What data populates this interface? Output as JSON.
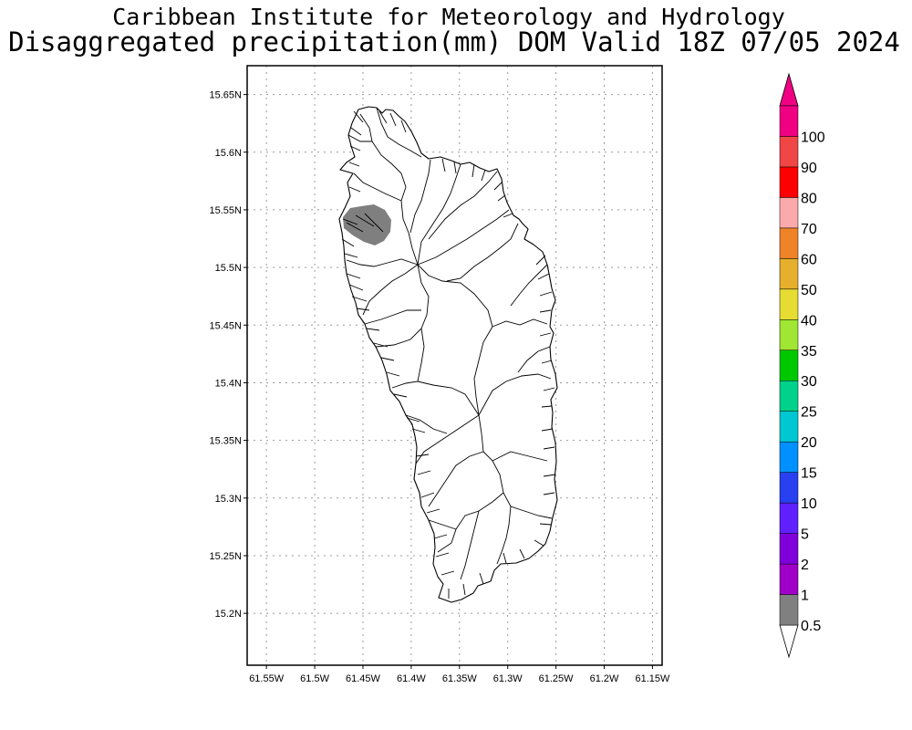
{
  "header": {
    "title": "Caribbean Institute for Meteorology and Hydrology",
    "subtitle": "Disaggregated precipitation(mm) DOM Valid 18Z 07/05 2024"
  },
  "map": {
    "lon_range": [
      -61.57,
      -61.14
    ],
    "lat_range": [
      15.155,
      15.675
    ],
    "lon_ticks": [
      {
        "value": -61.55,
        "label": "61.55W"
      },
      {
        "value": -61.5,
        "label": "61.5W"
      },
      {
        "value": -61.45,
        "label": "61.45W"
      },
      {
        "value": -61.4,
        "label": "61.4W"
      },
      {
        "value": -61.35,
        "label": "61.35W"
      },
      {
        "value": -61.3,
        "label": "61.3W"
      },
      {
        "value": -61.25,
        "label": "61.25W"
      },
      {
        "value": -61.2,
        "label": "61.2W"
      },
      {
        "value": -61.15,
        "label": "61.15W"
      }
    ],
    "lat_ticks": [
      {
        "value": 15.2,
        "label": "15.2N"
      },
      {
        "value": 15.25,
        "label": "15.25N"
      },
      {
        "value": 15.3,
        "label": "15.3N"
      },
      {
        "value": 15.35,
        "label": "15.35N"
      },
      {
        "value": 15.4,
        "label": "15.4N"
      },
      {
        "value": 15.45,
        "label": "15.45N"
      },
      {
        "value": 15.5,
        "label": "15.5N"
      },
      {
        "value": 15.55,
        "label": "15.55N"
      },
      {
        "value": 15.6,
        "label": "15.6N"
      },
      {
        "value": 15.65,
        "label": "15.65N"
      }
    ],
    "grid": true,
    "precip_area": {
      "category": "0.5-1",
      "color": "#7f7f7f"
    }
  },
  "colorbar": {
    "labels": [
      "0.5",
      "1",
      "2",
      "5",
      "10",
      "15",
      "20",
      "25",
      "30",
      "35",
      "40",
      "50",
      "60",
      "70",
      "80",
      "90",
      "100"
    ],
    "colors": [
      "#808080",
      "#a000c8",
      "#8000dc",
      "#6020ff",
      "#2840f0",
      "#0090ff",
      "#00c8d2",
      "#00d28c",
      "#00c800",
      "#a0e632",
      "#e6dc32",
      "#e6af2d",
      "#f08228",
      "#faaaaa",
      "#ff0000",
      "#f04646",
      "#f00082"
    ],
    "under_color": "#ffffff",
    "over_color": "#f00082"
  }
}
